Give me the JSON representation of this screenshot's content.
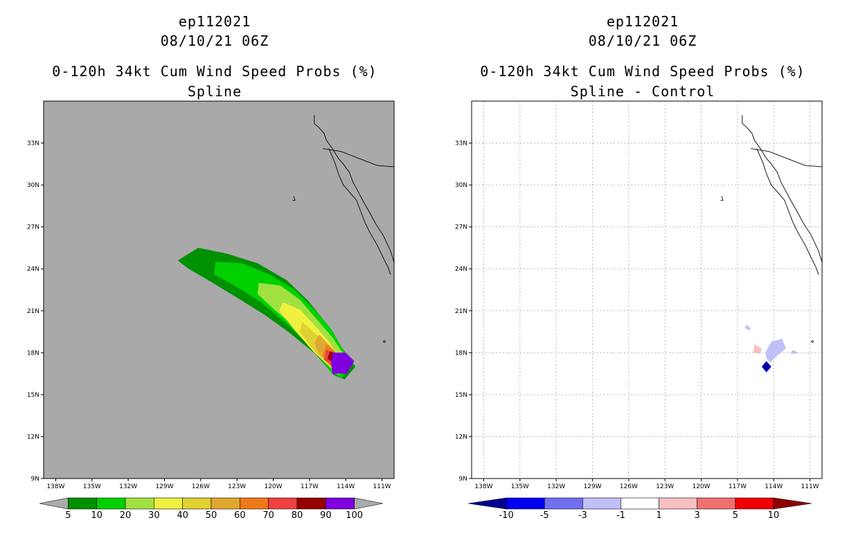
{
  "chart_data": [
    {
      "type": "heatmap",
      "storm_id": "ep112021",
      "datetime": "08/10/21 06Z",
      "title": "0-120h 34kt Cum Wind Speed Probs (%)",
      "subtitle": "Spline",
      "x_tick_labels": [
        "138W",
        "135W",
        "132W",
        "129W",
        "126W",
        "123W",
        "120W",
        "117W",
        "114W",
        "111W"
      ],
      "y_tick_labels": [
        "9N",
        "12N",
        "15N",
        "18N",
        "21N",
        "24N",
        "27N",
        "30N",
        "33N"
      ],
      "xlim": [
        -139,
        -110
      ],
      "ylim": [
        9,
        36
      ],
      "grid": false,
      "background_color": "#a9a9a9",
      "colorbar_labels": [
        "5",
        "10",
        "20",
        "30",
        "40",
        "50",
        "60",
        "70",
        "80",
        "90",
        "100"
      ],
      "colorbar_colors": [
        "#aaaaaa",
        "#009000",
        "#00d000",
        "#a0e040",
        "#f0f040",
        "#e0d030",
        "#e0a830",
        "#f07818",
        "#f04040",
        "#960000",
        "#8000e0",
        "#aaaaaa"
      ],
      "contours": [
        {
          "level": 5,
          "color": "#009000",
          "lonlat": [
            [
              -127.9,
              24.6
            ],
            [
              -126.2,
              25.5
            ],
            [
              -123.9,
              25.1
            ],
            [
              -121.3,
              24.4
            ],
            [
              -118.9,
              23.2
            ],
            [
              -117.1,
              21.7
            ],
            [
              -115.7,
              20.2
            ],
            [
              -114.5,
              18.6
            ],
            [
              -113.2,
              17.0
            ],
            [
              -114.1,
              16.1
            ],
            [
              -115.0,
              16.4
            ],
            [
              -116.5,
              17.9
            ],
            [
              -118.6,
              19.4
            ],
            [
              -120.7,
              20.7
            ],
            [
              -123.1,
              22.0
            ],
            [
              -125.2,
              23.1
            ],
            [
              -127.0,
              24.0
            ]
          ]
        },
        {
          "level": 10,
          "color": "#00d000",
          "lonlat": [
            [
              -124.8,
              24.5
            ],
            [
              -122.6,
              24.4
            ],
            [
              -120.3,
              23.6
            ],
            [
              -118.2,
              22.5
            ],
            [
              -116.5,
              21.0
            ],
            [
              -115.2,
              19.7
            ],
            [
              -114.2,
              18.2
            ],
            [
              -113.5,
              17.2
            ],
            [
              -114.3,
              16.2
            ],
            [
              -115.2,
              16.6
            ],
            [
              -116.8,
              18.3
            ],
            [
              -118.8,
              20.0
            ],
            [
              -121.0,
              21.6
            ],
            [
              -123.2,
              22.8
            ],
            [
              -124.9,
              23.6
            ]
          ]
        },
        {
          "level": 20,
          "color": "#a0e040",
          "lonlat": [
            [
              -121.2,
              23.0
            ],
            [
              -119.4,
              22.8
            ],
            [
              -117.8,
              21.8
            ],
            [
              -116.4,
              20.4
            ],
            [
              -115.1,
              19.1
            ],
            [
              -114.1,
              17.8
            ],
            [
              -113.6,
              17.1
            ],
            [
              -114.6,
              16.4
            ],
            [
              -116.1,
              17.6
            ],
            [
              -117.9,
              19.6
            ],
            [
              -119.8,
              21.0
            ],
            [
              -121.3,
              22.2
            ]
          ]
        },
        {
          "level": 30,
          "color": "#f0f040",
          "lonlat": [
            [
              -119.2,
              21.6
            ],
            [
              -117.8,
              21.1
            ],
            [
              -116.6,
              20.0
            ],
            [
              -115.5,
              18.9
            ],
            [
              -114.5,
              17.7
            ],
            [
              -113.7,
              17.1
            ],
            [
              -114.8,
              16.6
            ],
            [
              -116.6,
              18.0
            ],
            [
              -118.4,
              19.8
            ],
            [
              -119.5,
              21.0
            ]
          ]
        },
        {
          "level": 40,
          "color": "#e0d030",
          "lonlat": [
            [
              -117.6,
              20.2
            ],
            [
              -116.3,
              19.2
            ],
            [
              -115.3,
              18.2
            ],
            [
              -114.3,
              17.3
            ],
            [
              -115.0,
              16.8
            ],
            [
              -116.5,
              18.0
            ],
            [
              -117.8,
              19.5
            ]
          ]
        },
        {
          "level": 50,
          "color": "#e0a830",
          "lonlat": [
            [
              -116.2,
              19.3
            ],
            [
              -115.2,
              18.4
            ],
            [
              -114.3,
              17.5
            ],
            [
              -115.1,
              16.9
            ],
            [
              -116.2,
              17.9
            ],
            [
              -116.6,
              18.7
            ]
          ]
        },
        {
          "level": 60,
          "color": "#f07818",
          "lonlat": [
            [
              -115.6,
              18.6
            ],
            [
              -114.8,
              18.0
            ],
            [
              -114.0,
              17.5
            ],
            [
              -115.2,
              17.0
            ],
            [
              -115.9,
              17.8
            ]
          ]
        },
        {
          "level": 70,
          "color": "#f04040",
          "lonlat": [
            [
              -115.6,
              18.2
            ],
            [
              -114.4,
              17.7
            ],
            [
              -113.8,
              17.4
            ],
            [
              -115.0,
              17.0
            ],
            [
              -115.8,
              17.5
            ]
          ]
        },
        {
          "level": 80,
          "color": "#960000",
          "lonlat": [
            [
              -115.3,
              18.1
            ],
            [
              -114.1,
              17.8
            ],
            [
              -113.8,
              17.4
            ],
            [
              -115.0,
              17.2
            ],
            [
              -115.5,
              17.6
            ]
          ]
        },
        {
          "level": 90,
          "color": "#8000e0",
          "lonlat": [
            [
              -115.1,
              18.0
            ],
            [
              -114.0,
              18.0
            ],
            [
              -113.3,
              17.4
            ],
            [
              -113.9,
              16.5
            ],
            [
              -115.1,
              16.5
            ],
            [
              -115.2,
              17.2
            ]
          ]
        }
      ]
    },
    {
      "type": "heatmap",
      "storm_id": "ep112021",
      "datetime": "08/10/21 06Z",
      "title": "0-120h 34kt Cum Wind Speed Probs (%)",
      "subtitle": "Spline - Control",
      "x_tick_labels": [
        "138W",
        "135W",
        "132W",
        "129W",
        "126W",
        "123W",
        "120W",
        "117W",
        "114W",
        "111W"
      ],
      "y_tick_labels": [
        "9N",
        "12N",
        "15N",
        "18N",
        "21N",
        "24N",
        "27N",
        "30N",
        "33N"
      ],
      "xlim": [
        -139,
        -110
      ],
      "ylim": [
        9,
        36
      ],
      "grid": true,
      "background_color": "#ffffff",
      "colorbar_labels": [
        "-10",
        "-5",
        "-3",
        "-1",
        "1",
        "3",
        "5",
        "10"
      ],
      "colorbar_colors": [
        "#000090",
        "#0000f0",
        "#7070f0",
        "#c0c0f8",
        "#ffffff",
        "#f8c0c0",
        "#f07070",
        "#f00000",
        "#900000"
      ],
      "contours": [
        {
          "level": -1,
          "color": "#c0c0f8",
          "lonlat": [
            [
              -114.7,
              18.0
            ],
            [
              -114.2,
              18.8
            ],
            [
              -113.3,
              19.0
            ],
            [
              -113.0,
              18.3
            ],
            [
              -113.7,
              17.8
            ],
            [
              -114.3,
              17.3
            ],
            [
              -114.6,
              17.6
            ]
          ]
        },
        {
          "level": -1,
          "color": "#c0c0f8",
          "lonlat": [
            [
              -116.2,
              20.0
            ],
            [
              -115.9,
              19.7
            ],
            [
              -116.1,
              19.6
            ],
            [
              -116.4,
              19.8
            ]
          ]
        },
        {
          "level": -1,
          "color": "#c0c0f8",
          "lonlat": [
            [
              -112.4,
              18.2
            ],
            [
              -112.0,
              18.0
            ],
            [
              -112.3,
              17.9
            ],
            [
              -112.6,
              18.0
            ]
          ]
        },
        {
          "level": -5,
          "color": "#0000f0",
          "lonlat": [
            [
              -114.6,
              17.4
            ],
            [
              -114.2,
              17.0
            ],
            [
              -114.6,
              16.6
            ],
            [
              -115.0,
              17.0
            ]
          ]
        },
        {
          "level": -10,
          "color": "#000090",
          "lonlat": [
            [
              -114.6,
              17.3
            ],
            [
              -114.3,
              17.0
            ],
            [
              -114.6,
              16.7
            ],
            [
              -114.9,
              17.0
            ]
          ]
        },
        {
          "level": 1,
          "color": "#f8c0c0",
          "lonlat": [
            [
              -115.6,
              18.6
            ],
            [
              -115.0,
              18.3
            ],
            [
              -115.1,
              17.9
            ],
            [
              -115.7,
              18.0
            ]
          ]
        }
      ]
    }
  ]
}
